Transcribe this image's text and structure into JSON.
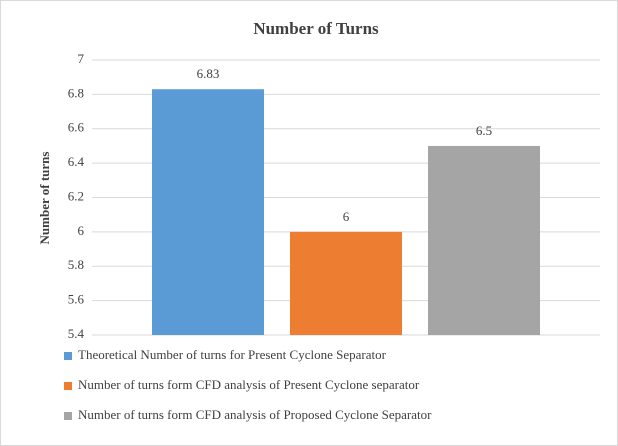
{
  "chart_data": {
    "type": "bar",
    "title": "Number of Turns",
    "y_label": "Number of turns",
    "categories": [
      null
    ],
    "series": [
      {
        "name": "Theoretical Number of turns for Present Cyclone Separator",
        "color": "#5b9bd5",
        "values": [
          6.83
        ]
      },
      {
        "name": "Number of turns form CFD analysis of Present Cyclone separator",
        "color": "#ed7d31",
        "values": [
          6
        ]
      },
      {
        "name": "Number of turns form CFD analysis of Proposed Cyclone Separator",
        "color": "#a5a5a5",
        "values": [
          6.5
        ]
      }
    ],
    "ylim": [
      5.4,
      7
    ],
    "yticks": [
      5.4,
      5.6,
      5.8,
      6,
      6.2,
      6.4,
      6.6,
      6.8,
      7
    ],
    "grid": true,
    "legend": "bottom",
    "data_labels": true
  }
}
